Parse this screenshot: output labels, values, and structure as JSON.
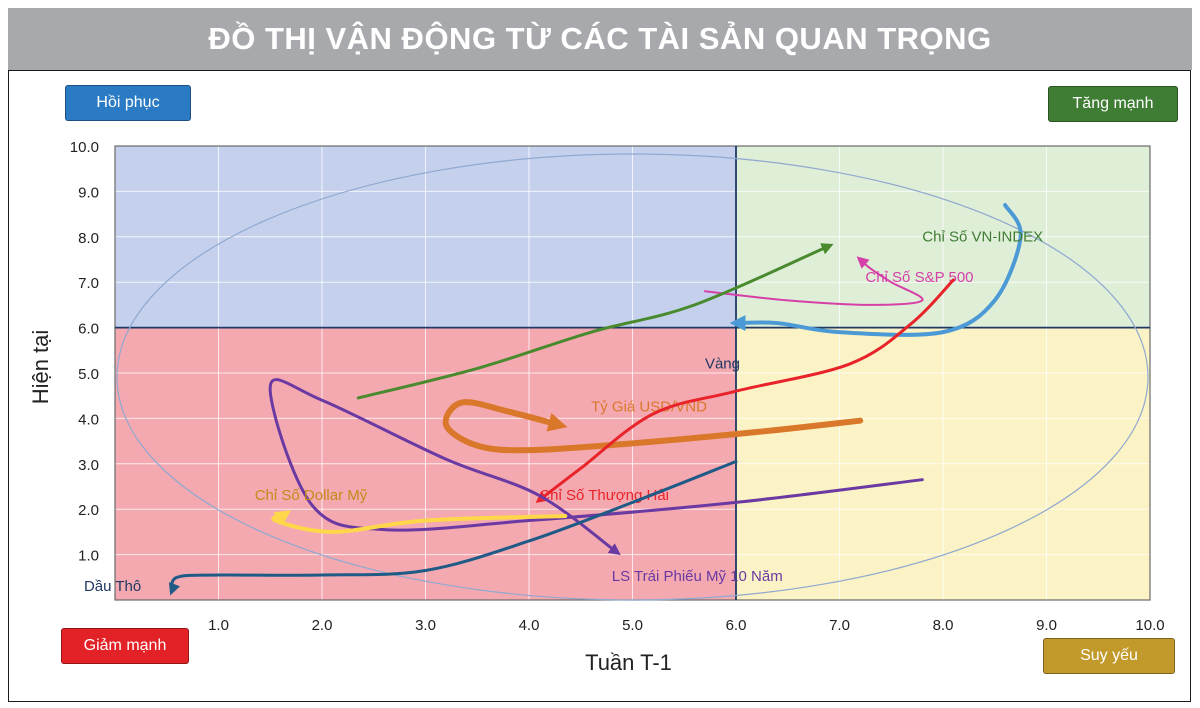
{
  "title": "ĐỒ THỊ VẬN ĐỘNG TỪ CÁC TÀI SẢN QUAN TRỌNG",
  "quadrants": {
    "top_left": {
      "label": "Hồi phục",
      "color": "#2b7bc4"
    },
    "top_right": {
      "label": "Tăng mạnh",
      "color": "#3f7d34"
    },
    "bottom_left": {
      "label": "Giảm mạnh",
      "color": "#e32227"
    },
    "bottom_right": {
      "label": "Suy yếu",
      "color": "#c29a2b"
    }
  },
  "chart_data": {
    "type": "line",
    "xlabel": "Tuần T-1",
    "ylabel": "Hiện tại",
    "xlim": [
      0,
      10
    ],
    "ylim": [
      0,
      10
    ],
    "x_ticks": [
      "1.0",
      "2.0",
      "3.0",
      "4.0",
      "5.0",
      "6.0",
      "7.0",
      "8.0",
      "9.0",
      "10.0"
    ],
    "y_ticks": [
      "1.0",
      "2.0",
      "3.0",
      "4.0",
      "5.0",
      "6.0",
      "7.0",
      "8.0",
      "9.0",
      "10.0"
    ],
    "grid": true,
    "center": [
      6,
      6
    ],
    "region_colors": {
      "top_left": "#c5d1ec",
      "top_right": "#dfeed7",
      "bottom_left": "#f4a9b0",
      "bottom_right": "#fbf3c5"
    },
    "series": [
      {
        "name": "Chỉ Số VN-INDEX",
        "color": "#4b9ad6",
        "width": 4,
        "points": [
          [
            8.6,
            8.7
          ],
          [
            8.75,
            8.0
          ],
          [
            8.5,
            6.6
          ],
          [
            8.0,
            5.9
          ],
          [
            7.0,
            5.9
          ],
          [
            6.4,
            6.1
          ],
          [
            6.0,
            6.1
          ]
        ],
        "label_pos": [
          7.8,
          7.9
        ],
        "label_color": "#3f7d34"
      },
      {
        "name": "Chỉ Số S&P 500",
        "color": "#d63fa8",
        "width": 2,
        "points": [
          [
            5.7,
            6.8
          ],
          [
            6.5,
            6.6
          ],
          [
            7.3,
            6.5
          ],
          [
            7.8,
            6.6
          ],
          [
            7.5,
            7.0
          ],
          [
            7.3,
            7.3
          ],
          [
            7.2,
            7.5
          ]
        ],
        "label_pos": [
          7.25,
          7.0
        ],
        "label_color": "#d63fa8"
      },
      {
        "name": "",
        "color": "#4a8a2e",
        "width": 3,
        "points": [
          [
            2.35,
            4.45
          ],
          [
            3.5,
            5.1
          ],
          [
            4.6,
            5.9
          ],
          [
            5.6,
            6.5
          ],
          [
            6.9,
            7.8
          ]
        ],
        "label_pos": null,
        "label_color": "#4a8a2e"
      },
      {
        "name": "Tỷ Giá USD/VND",
        "color": "#d9782a",
        "width": 6,
        "points": [
          [
            7.2,
            3.95
          ],
          [
            6.2,
            3.7
          ],
          [
            5.0,
            3.45
          ],
          [
            4.0,
            3.3
          ],
          [
            3.5,
            3.4
          ],
          [
            3.2,
            3.85
          ],
          [
            3.35,
            4.35
          ],
          [
            3.8,
            4.15
          ],
          [
            4.3,
            3.85
          ]
        ],
        "label_pos": [
          4.6,
          4.15
        ],
        "label_color": "#d9782a"
      },
      {
        "name": "Chỉ Số Thượng Hải",
        "color": "#e8232a",
        "width": 3,
        "points": [
          [
            8.1,
            7.05
          ],
          [
            7.7,
            6.1
          ],
          [
            7.1,
            5.2
          ],
          [
            6.0,
            4.6
          ],
          [
            5.2,
            4.1
          ],
          [
            4.5,
            2.9
          ],
          [
            4.1,
            2.2
          ]
        ],
        "label_pos": [
          4.1,
          2.2
        ],
        "label_color": "#e8232a"
      },
      {
        "name": "LS Trái Phiếu Mỹ 10 Năm",
        "color": "#6a3aa2",
        "width": 3,
        "points": [
          [
            7.8,
            2.65
          ],
          [
            6.0,
            2.15
          ],
          [
            4.0,
            1.75
          ],
          [
            2.6,
            1.55
          ],
          [
            1.9,
            2.1
          ],
          [
            1.5,
            4.7
          ],
          [
            2.0,
            4.4
          ],
          [
            3.2,
            3.1
          ],
          [
            4.1,
            2.3
          ],
          [
            4.85,
            1.05
          ]
        ],
        "label_pos": [
          4.8,
          0.42
        ],
        "label_color": "#6a3aa2"
      },
      {
        "name": "Chỉ Số Dollar Mỹ",
        "color": "#ffd84a",
        "width": 4,
        "points": [
          [
            4.35,
            1.85
          ],
          [
            3.0,
            1.75
          ],
          [
            2.1,
            1.5
          ],
          [
            1.55,
            1.75
          ],
          [
            1.65,
            1.9
          ]
        ],
        "label_pos": [
          1.35,
          2.2
        ],
        "label_color": "#c48a1a"
      },
      {
        "name": "Dầu Thô",
        "color": "#1f5b86",
        "width": 3,
        "points": [
          [
            6.0,
            3.05
          ],
          [
            5.0,
            2.15
          ],
          [
            4.0,
            1.3
          ],
          [
            3.0,
            0.65
          ],
          [
            2.0,
            0.55
          ],
          [
            1.0,
            0.55
          ],
          [
            0.6,
            0.5
          ],
          [
            0.55,
            0.2
          ]
        ],
        "label_pos": [
          -0.3,
          0.2
        ],
        "label_color": "#1f3864"
      },
      {
        "name": "Vàng",
        "color": "#1f3864",
        "width": 1,
        "points": [],
        "label_pos": [
          5.7,
          5.1
        ],
        "label_color": "#1f3864"
      }
    ]
  }
}
